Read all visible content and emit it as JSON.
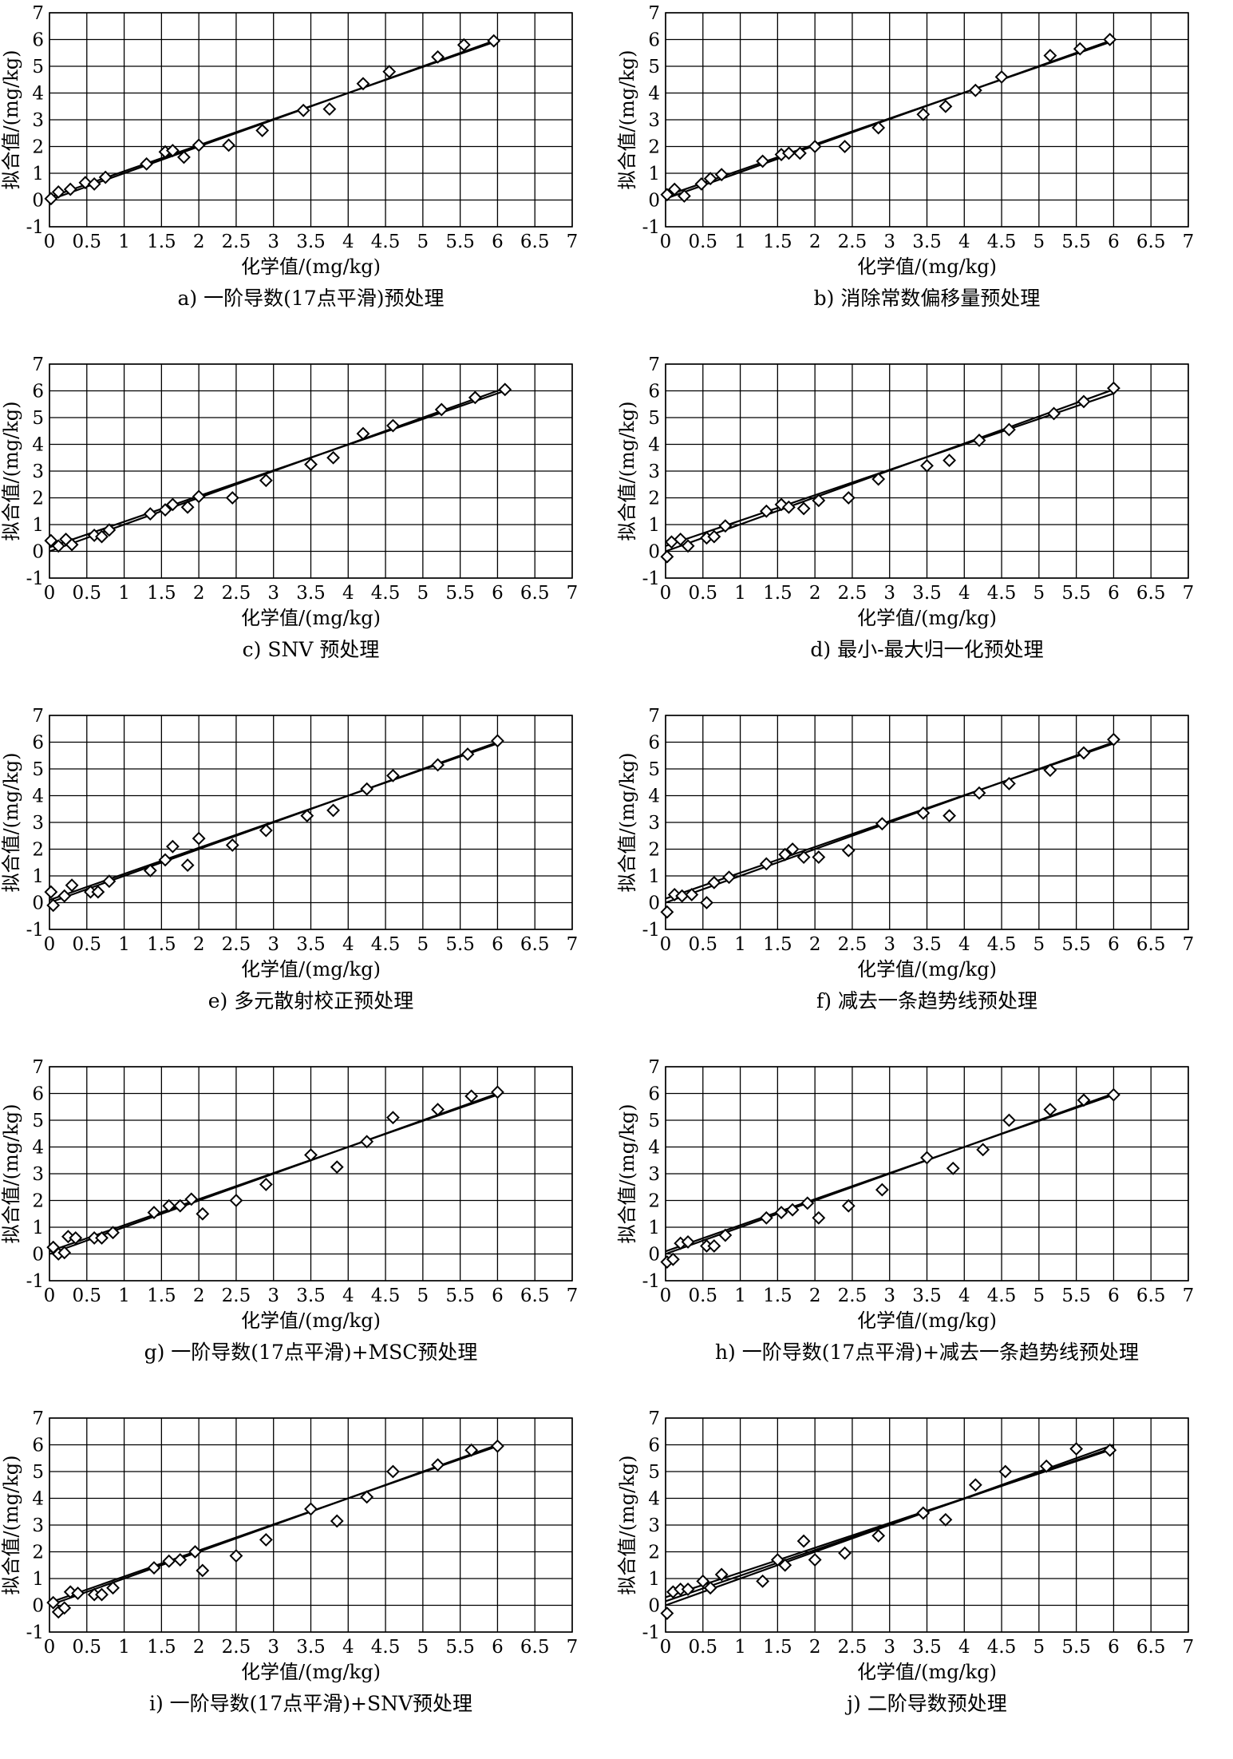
{
  "shared": {
    "xlabel": "化学值/(mg/kg)",
    "ylabel": "拟合值/(mg/kg)",
    "x_ticks": [
      "0",
      "0.5",
      "1",
      "1.5",
      "2",
      "2.5",
      "3",
      "3.5",
      "4",
      "4.5",
      "5",
      "5.5",
      "6",
      "6.5",
      "7"
    ],
    "y_ticks": [
      "-1",
      "0",
      "1",
      "2",
      "3",
      "4",
      "5",
      "6",
      "7"
    ]
  },
  "chart_data": [
    {
      "type": "scatter",
      "caption": "a) 一阶导数(17点平滑)预处理",
      "xlabel": "化学值/(mg/kg)",
      "ylabel": "拟合值/(mg/kg)",
      "xlim": [
        0,
        7
      ],
      "ylim": [
        -1,
        7
      ],
      "grid": true,
      "points": [
        [
          0.02,
          0.05
        ],
        [
          0.12,
          0.3
        ],
        [
          0.28,
          0.4
        ],
        [
          0.48,
          0.65
        ],
        [
          0.6,
          0.6
        ],
        [
          0.75,
          0.85
        ],
        [
          1.3,
          1.35
        ],
        [
          1.55,
          1.8
        ],
        [
          1.65,
          1.85
        ],
        [
          1.8,
          1.6
        ],
        [
          2.0,
          2.05
        ],
        [
          2.4,
          2.05
        ],
        [
          2.85,
          2.6
        ],
        [
          3.4,
          3.35
        ],
        [
          3.75,
          3.4
        ],
        [
          4.2,
          4.35
        ],
        [
          4.55,
          4.8
        ],
        [
          5.2,
          5.35
        ],
        [
          5.55,
          5.8
        ],
        [
          5.95,
          5.95
        ]
      ],
      "fit_lines": [
        [
          [
            0,
            0
          ],
          [
            6,
            6
          ]
        ],
        [
          [
            0,
            0.1
          ],
          [
            6,
            5.95
          ]
        ]
      ]
    },
    {
      "type": "scatter",
      "caption": "b) 消除常数偏移量预处理",
      "xlabel": "化学值/(mg/kg)",
      "ylabel": "拟合值/(mg/kg)",
      "xlim": [
        0,
        7
      ],
      "ylim": [
        -1,
        7
      ],
      "grid": true,
      "points": [
        [
          0.02,
          0.2
        ],
        [
          0.12,
          0.4
        ],
        [
          0.25,
          0.15
        ],
        [
          0.48,
          0.6
        ],
        [
          0.6,
          0.8
        ],
        [
          0.75,
          0.95
        ],
        [
          1.3,
          1.45
        ],
        [
          1.55,
          1.7
        ],
        [
          1.65,
          1.75
        ],
        [
          1.8,
          1.75
        ],
        [
          2.0,
          2.0
        ],
        [
          2.4,
          2.0
        ],
        [
          2.85,
          2.7
        ],
        [
          3.45,
          3.2
        ],
        [
          3.75,
          3.5
        ],
        [
          4.15,
          4.1
        ],
        [
          4.5,
          4.6
        ],
        [
          5.15,
          5.4
        ],
        [
          5.55,
          5.65
        ],
        [
          5.95,
          6.0
        ]
      ],
      "fit_lines": [
        [
          [
            0,
            0.05
          ],
          [
            6,
            6.0
          ]
        ],
        [
          [
            0,
            0.15
          ],
          [
            6,
            5.95
          ]
        ]
      ]
    },
    {
      "type": "scatter",
      "caption": "c) SNV 预处理",
      "xlabel": "化学值/(mg/kg)",
      "ylabel": "拟合值/(mg/kg)",
      "xlim": [
        0,
        7
      ],
      "ylim": [
        -1,
        7
      ],
      "grid": true,
      "points": [
        [
          0.02,
          0.4
        ],
        [
          0.12,
          0.2
        ],
        [
          0.22,
          0.45
        ],
        [
          0.3,
          0.25
        ],
        [
          0.6,
          0.6
        ],
        [
          0.7,
          0.55
        ],
        [
          0.8,
          0.8
        ],
        [
          1.35,
          1.4
        ],
        [
          1.55,
          1.55
        ],
        [
          1.65,
          1.75
        ],
        [
          1.85,
          1.65
        ],
        [
          2.0,
          2.05
        ],
        [
          2.45,
          2.0
        ],
        [
          2.9,
          2.65
        ],
        [
          3.5,
          3.25
        ],
        [
          3.8,
          3.5
        ],
        [
          4.2,
          4.4
        ],
        [
          4.6,
          4.7
        ],
        [
          5.25,
          5.3
        ],
        [
          5.7,
          5.75
        ],
        [
          6.1,
          6.05
        ]
      ],
      "fit_lines": [
        [
          [
            0,
            0
          ],
          [
            6.1,
            6.1
          ]
        ],
        [
          [
            0,
            0.15
          ],
          [
            6.1,
            6.0
          ]
        ]
      ]
    },
    {
      "type": "scatter",
      "caption": "d) 最小-最大归一化预处理",
      "xlabel": "化学值/(mg/kg)",
      "ylabel": "拟合值/(mg/kg)",
      "xlim": [
        0,
        7
      ],
      "ylim": [
        -1,
        7
      ],
      "grid": true,
      "points": [
        [
          0.02,
          -0.2
        ],
        [
          0.08,
          0.35
        ],
        [
          0.2,
          0.45
        ],
        [
          0.3,
          0.2
        ],
        [
          0.55,
          0.5
        ],
        [
          0.65,
          0.55
        ],
        [
          0.8,
          0.95
        ],
        [
          1.35,
          1.5
        ],
        [
          1.55,
          1.75
        ],
        [
          1.65,
          1.65
        ],
        [
          1.85,
          1.6
        ],
        [
          2.05,
          1.9
        ],
        [
          2.45,
          2.0
        ],
        [
          2.85,
          2.7
        ],
        [
          3.5,
          3.2
        ],
        [
          3.8,
          3.4
        ],
        [
          4.2,
          4.15
        ],
        [
          4.6,
          4.55
        ],
        [
          5.2,
          5.15
        ],
        [
          5.6,
          5.6
        ],
        [
          6.0,
          6.1
        ]
      ],
      "fit_lines": [
        [
          [
            0,
            0
          ],
          [
            6,
            6.05
          ]
        ],
        [
          [
            0,
            0.2
          ],
          [
            6,
            5.9
          ]
        ]
      ]
    },
    {
      "type": "scatter",
      "caption": "e) 多元散射校正预处理",
      "xlabel": "化学值/(mg/kg)",
      "ylabel": "拟合值/(mg/kg)",
      "xlim": [
        0,
        7
      ],
      "ylim": [
        -1,
        7
      ],
      "grid": true,
      "points": [
        [
          0.02,
          0.4
        ],
        [
          0.05,
          -0.1
        ],
        [
          0.2,
          0.25
        ],
        [
          0.3,
          0.65
        ],
        [
          0.55,
          0.4
        ],
        [
          0.65,
          0.4
        ],
        [
          0.8,
          0.8
        ],
        [
          1.35,
          1.2
        ],
        [
          1.55,
          1.6
        ],
        [
          1.65,
          2.1
        ],
        [
          1.85,
          1.4
        ],
        [
          2.0,
          2.4
        ],
        [
          2.45,
          2.15
        ],
        [
          2.9,
          2.7
        ],
        [
          3.45,
          3.25
        ],
        [
          3.8,
          3.45
        ],
        [
          4.25,
          4.25
        ],
        [
          4.6,
          4.75
        ],
        [
          5.2,
          5.15
        ],
        [
          5.6,
          5.55
        ],
        [
          6.0,
          6.05
        ]
      ],
      "fit_lines": [
        [
          [
            0,
            0
          ],
          [
            6,
            6.0
          ]
        ],
        [
          [
            0,
            0.1
          ],
          [
            6,
            5.95
          ]
        ]
      ]
    },
    {
      "type": "scatter",
      "caption": "f) 减去一条趋势线预处理",
      "xlabel": "化学值/(mg/kg)",
      "ylabel": "拟合值/(mg/kg)",
      "xlim": [
        0,
        7
      ],
      "ylim": [
        -1,
        7
      ],
      "grid": true,
      "points": [
        [
          0.02,
          -0.35
        ],
        [
          0.12,
          0.3
        ],
        [
          0.22,
          0.25
        ],
        [
          0.35,
          0.3
        ],
        [
          0.55,
          0.0
        ],
        [
          0.65,
          0.75
        ],
        [
          0.85,
          0.95
        ],
        [
          1.35,
          1.45
        ],
        [
          1.6,
          1.8
        ],
        [
          1.7,
          2.0
        ],
        [
          1.85,
          1.7
        ],
        [
          2.05,
          1.7
        ],
        [
          2.45,
          1.95
        ],
        [
          2.9,
          2.95
        ],
        [
          3.45,
          3.35
        ],
        [
          3.8,
          3.25
        ],
        [
          4.2,
          4.1
        ],
        [
          4.6,
          4.45
        ],
        [
          5.15,
          4.95
        ],
        [
          5.6,
          5.6
        ],
        [
          6.0,
          6.1
        ]
      ],
      "fit_lines": [
        [
          [
            0,
            0
          ],
          [
            6,
            6.0
          ]
        ],
        [
          [
            0,
            0.15
          ],
          [
            6,
            5.95
          ]
        ]
      ]
    },
    {
      "type": "scatter",
      "caption": "g) 一阶导数(17点平滑)+MSC预处理",
      "xlabel": "化学值/(mg/kg)",
      "ylabel": "拟合值/(mg/kg)",
      "xlim": [
        0,
        7
      ],
      "ylim": [
        -1,
        7
      ],
      "grid": true,
      "points": [
        [
          0.05,
          0.25
        ],
        [
          0.12,
          0.0
        ],
        [
          0.2,
          0.05
        ],
        [
          0.25,
          0.65
        ],
        [
          0.35,
          0.6
        ],
        [
          0.6,
          0.6
        ],
        [
          0.7,
          0.6
        ],
        [
          0.85,
          0.8
        ],
        [
          1.4,
          1.55
        ],
        [
          1.6,
          1.8
        ],
        [
          1.75,
          1.8
        ],
        [
          1.9,
          2.05
        ],
        [
          2.05,
          1.5
        ],
        [
          2.5,
          2.0
        ],
        [
          2.9,
          2.6
        ],
        [
          3.5,
          3.7
        ],
        [
          3.85,
          3.25
        ],
        [
          4.25,
          4.2
        ],
        [
          4.6,
          5.1
        ],
        [
          5.2,
          5.4
        ],
        [
          5.65,
          5.9
        ],
        [
          6.0,
          6.05
        ]
      ],
      "fit_lines": [
        [
          [
            0,
            0
          ],
          [
            6,
            6.0
          ]
        ],
        [
          [
            0,
            0.1
          ],
          [
            6,
            5.95
          ]
        ]
      ]
    },
    {
      "type": "scatter",
      "caption": "h) 一阶导数(17点平滑)+减去一条趋势线预处理",
      "xlabel": "化学值/(mg/kg)",
      "ylabel": "拟合值/(mg/kg)",
      "xlim": [
        0,
        7
      ],
      "ylim": [
        -1,
        7
      ],
      "grid": true,
      "points": [
        [
          0.02,
          -0.3
        ],
        [
          0.1,
          -0.2
        ],
        [
          0.2,
          0.4
        ],
        [
          0.3,
          0.45
        ],
        [
          0.55,
          0.3
        ],
        [
          0.65,
          0.3
        ],
        [
          0.8,
          0.7
        ],
        [
          1.35,
          1.35
        ],
        [
          1.55,
          1.55
        ],
        [
          1.7,
          1.65
        ],
        [
          1.9,
          1.9
        ],
        [
          2.05,
          1.35
        ],
        [
          2.45,
          1.8
        ],
        [
          2.9,
          2.4
        ],
        [
          3.5,
          3.6
        ],
        [
          3.85,
          3.2
        ],
        [
          4.25,
          3.9
        ],
        [
          4.6,
          5.0
        ],
        [
          5.15,
          5.4
        ],
        [
          5.6,
          5.75
        ],
        [
          6.0,
          5.95
        ]
      ],
      "fit_lines": [
        [
          [
            0,
            0
          ],
          [
            6,
            6.0
          ]
        ],
        [
          [
            0,
            0.1
          ],
          [
            6,
            5.95
          ]
        ]
      ]
    },
    {
      "type": "scatter",
      "caption": "i) 一阶导数(17点平滑)+SNV预处理",
      "xlabel": "化学值/(mg/kg)",
      "ylabel": "拟合值/(mg/kg)",
      "xlim": [
        0,
        7
      ],
      "ylim": [
        -1,
        7
      ],
      "grid": true,
      "points": [
        [
          0.05,
          0.1
        ],
        [
          0.12,
          -0.25
        ],
        [
          0.2,
          -0.1
        ],
        [
          0.28,
          0.5
        ],
        [
          0.38,
          0.45
        ],
        [
          0.6,
          0.4
        ],
        [
          0.7,
          0.4
        ],
        [
          0.85,
          0.65
        ],
        [
          1.4,
          1.4
        ],
        [
          1.6,
          1.65
        ],
        [
          1.75,
          1.7
        ],
        [
          1.95,
          2.0
        ],
        [
          2.05,
          1.3
        ],
        [
          2.5,
          1.85
        ],
        [
          2.9,
          2.45
        ],
        [
          3.5,
          3.6
        ],
        [
          3.85,
          3.15
        ],
        [
          4.25,
          4.05
        ],
        [
          4.6,
          5.0
        ],
        [
          5.2,
          5.25
        ],
        [
          5.65,
          5.8
        ],
        [
          6.0,
          5.95
        ]
      ],
      "fit_lines": [
        [
          [
            0,
            0
          ],
          [
            6,
            6.0
          ]
        ],
        [
          [
            0,
            0.1
          ],
          [
            6,
            5.95
          ]
        ]
      ]
    },
    {
      "type": "scatter",
      "caption": "j) 二阶导数预处理",
      "xlabel": "化学值/(mg/kg)",
      "ylabel": "拟合值/(mg/kg)",
      "xlim": [
        0,
        7
      ],
      "ylim": [
        -1,
        7
      ],
      "grid": true,
      "points": [
        [
          0.02,
          -0.3
        ],
        [
          0.1,
          0.5
        ],
        [
          0.2,
          0.6
        ],
        [
          0.3,
          0.6
        ],
        [
          0.5,
          0.9
        ],
        [
          0.6,
          0.65
        ],
        [
          0.75,
          1.15
        ],
        [
          1.3,
          0.9
        ],
        [
          1.5,
          1.7
        ],
        [
          1.6,
          1.5
        ],
        [
          1.85,
          2.4
        ],
        [
          2.0,
          1.7
        ],
        [
          2.4,
          1.95
        ],
        [
          2.85,
          2.6
        ],
        [
          3.45,
          3.45
        ],
        [
          3.75,
          3.2
        ],
        [
          4.15,
          4.5
        ],
        [
          4.55,
          5.0
        ],
        [
          5.1,
          5.2
        ],
        [
          5.5,
          5.85
        ],
        [
          5.95,
          5.8
        ]
      ],
      "fit_lines": [
        [
          [
            0,
            0
          ],
          [
            6,
            6.0
          ]
        ],
        [
          [
            0,
            0.15
          ],
          [
            6,
            5.9
          ]
        ],
        [
          [
            0,
            0.3
          ],
          [
            6,
            5.85
          ]
        ]
      ]
    }
  ]
}
